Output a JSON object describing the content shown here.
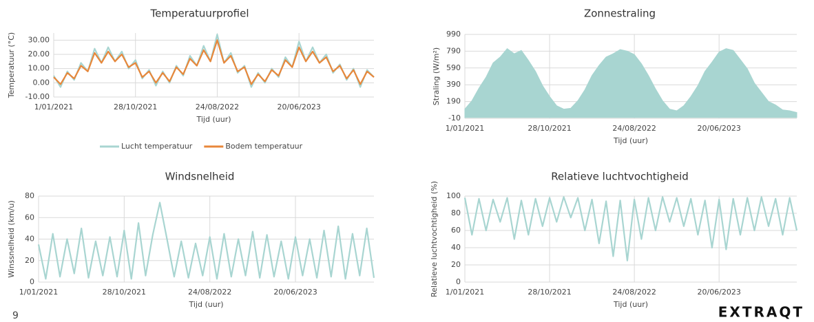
{
  "chart_data": [
    {
      "type": "line",
      "title": "Temperatuurprofiel",
      "xlabel": "Tijd (uur)",
      "ylabel": "Temperatuur (°C)",
      "x": [
        0,
        25,
        50,
        75,
        100,
        125,
        150,
        175,
        200,
        225,
        250,
        275,
        300,
        325,
        350,
        375,
        400,
        425,
        450,
        475,
        500,
        525,
        550,
        575,
        600,
        625,
        650,
        675,
        700,
        725,
        750,
        775,
        800,
        825,
        850,
        875,
        900,
        925,
        950,
        975,
        1000,
        1025,
        1050,
        1075,
        1100,
        1125,
        1150,
        1175
      ],
      "series": [
        {
          "name": "Lucht temperatuur",
          "color": "#a8d5d1",
          "values": [
            5,
            -3,
            8,
            2,
            14,
            8,
            24,
            14,
            25,
            15,
            22,
            10,
            16,
            3,
            9,
            -2,
            8,
            0,
            12,
            5,
            19,
            12,
            26,
            15,
            34,
            14,
            21,
            7,
            12,
            -3,
            7,
            0,
            10,
            4,
            18,
            11,
            29,
            15,
            25,
            14,
            20,
            7,
            13,
            2,
            10,
            -3,
            9,
            4
          ]
        },
        {
          "name": "Bodem temperatuur",
          "color": "#e8873a",
          "values": [
            4,
            -1,
            7,
            3,
            12,
            8,
            21,
            14,
            22,
            15,
            20,
            11,
            14,
            4,
            8,
            0,
            7,
            1,
            11,
            6,
            17,
            12,
            23,
            15,
            30,
            14,
            19,
            8,
            11,
            -1,
            6,
            1,
            9,
            5,
            16,
            11,
            25,
            15,
            22,
            14,
            18,
            8,
            12,
            3,
            9,
            -1,
            8,
            4
          ]
        }
      ],
      "xlim": [
        0,
        1175
      ],
      "xticks": [
        {
          "value": 0,
          "label": "1/01/2021"
        },
        {
          "value": 300,
          "label": "28/10/2021"
        },
        {
          "value": 600,
          "label": "24/08/2022"
        },
        {
          "value": 900,
          "label": "20/06/2023"
        }
      ],
      "ylim": [
        -10,
        35
      ],
      "yticks": [
        {
          "value": -10,
          "label": "-10.00"
        },
        {
          "value": 0,
          "label": "0.00"
        },
        {
          "value": 10,
          "label": "10.00"
        },
        {
          "value": 20,
          "label": "20.00"
        },
        {
          "value": 30,
          "label": "30.00"
        }
      ],
      "grid": true,
      "legend": "bottom"
    },
    {
      "type": "area",
      "title": "Zonnestraling",
      "xlabel": "Tijd (uur)",
      "ylabel": "Straling (W/m²)",
      "x": [
        0,
        25,
        50,
        75,
        100,
        125,
        150,
        175,
        200,
        225,
        250,
        275,
        300,
        325,
        350,
        375,
        400,
        425,
        450,
        475,
        500,
        525,
        550,
        575,
        600,
        625,
        650,
        675,
        700,
        725,
        750,
        775,
        800,
        825,
        850,
        875,
        900,
        925,
        950,
        975,
        1000,
        1025,
        1050,
        1075,
        1100,
        1125,
        1150,
        1175
      ],
      "series": [
        {
          "name": "Straling",
          "color": "#a8d5d1",
          "values": [
            100,
            200,
            350,
            480,
            650,
            720,
            820,
            760,
            800,
            680,
            550,
            380,
            250,
            140,
            100,
            110,
            200,
            330,
            500,
            620,
            720,
            760,
            810,
            790,
            750,
            640,
            500,
            340,
            200,
            100,
            80,
            140,
            250,
            380,
            550,
            660,
            780,
            820,
            800,
            690,
            580,
            410,
            300,
            190,
            150,
            90,
            80,
            60
          ]
        }
      ],
      "xlim": [
        0,
        1175
      ],
      "xticks": [
        {
          "value": 0,
          "label": "1/01/2021"
        },
        {
          "value": 300,
          "label": "28/10/2021"
        },
        {
          "value": 600,
          "label": "24/08/2022"
        },
        {
          "value": 900,
          "label": "20/06/2023"
        }
      ],
      "ylim": [
        -10,
        990
      ],
      "yticks": [
        -10,
        190,
        390,
        590,
        790,
        990
      ],
      "grid": true
    },
    {
      "type": "line",
      "title": "Windsnelheid",
      "xlabel": "Tijd (uur)",
      "ylabel": "Winssnelheid (km/u)",
      "x": [
        0,
        25,
        50,
        75,
        100,
        125,
        150,
        175,
        200,
        225,
        250,
        275,
        300,
        325,
        350,
        375,
        400,
        425,
        450,
        475,
        500,
        525,
        550,
        575,
        600,
        625,
        650,
        675,
        700,
        725,
        750,
        775,
        800,
        825,
        850,
        875,
        900,
        925,
        950,
        975,
        1000,
        1025,
        1050,
        1075,
        1100,
        1125,
        1150,
        1175
      ],
      "series": [
        {
          "name": "Windsnelheid",
          "color": "#a8d5d1",
          "values": [
            35,
            3,
            45,
            5,
            40,
            8,
            50,
            4,
            38,
            6,
            42,
            5,
            48,
            3,
            55,
            6,
            44,
            74,
            40,
            5,
            38,
            4,
            36,
            6,
            42,
            3,
            45,
            5,
            40,
            6,
            47,
            4,
            44,
            5,
            38,
            3,
            42,
            6,
            40,
            4,
            48,
            5,
            52,
            3,
            45,
            6,
            50,
            4
          ]
        }
      ],
      "xlim": [
        0,
        1175
      ],
      "xticks": [
        {
          "value": 0,
          "label": "1/01/2021"
        },
        {
          "value": 300,
          "label": "28/10/2021"
        },
        {
          "value": 600,
          "label": "24/08/2022"
        },
        {
          "value": 900,
          "label": "20/06/2023"
        }
      ],
      "ylim": [
        0,
        80
      ],
      "yticks": [
        0,
        20,
        40,
        60,
        80
      ],
      "grid": true
    },
    {
      "type": "line",
      "title": "Relatieve luchtvochtigheid",
      "xlabel": "Tijd (uur)",
      "ylabel": "Relatieve luchtvochtigheid (%)",
      "x": [
        0,
        25,
        50,
        75,
        100,
        125,
        150,
        175,
        200,
        225,
        250,
        275,
        300,
        325,
        350,
        375,
        400,
        425,
        450,
        475,
        500,
        525,
        550,
        575,
        600,
        625,
        650,
        675,
        700,
        725,
        750,
        775,
        800,
        825,
        850,
        875,
        900,
        925,
        950,
        975,
        1000,
        1025,
        1050,
        1075,
        1100,
        1125,
        1150,
        1175
      ],
      "series": [
        {
          "name": "Relatieve luchtvochtigheid",
          "color": "#a8d5d1",
          "values": [
            98,
            55,
            97,
            60,
            96,
            70,
            98,
            50,
            95,
            55,
            97,
            65,
            98,
            70,
            99,
            75,
            98,
            60,
            96,
            45,
            94,
            30,
            95,
            25,
            96,
            50,
            98,
            60,
            99,
            70,
            98,
            65,
            97,
            55,
            95,
            40,
            96,
            38,
            97,
            55,
            98,
            60,
            99,
            65,
            97,
            55,
            98,
            60
          ]
        }
      ],
      "xlim": [
        0,
        1175
      ],
      "xticks": [
        {
          "value": 0,
          "label": "1/01/2021"
        },
        {
          "value": 300,
          "label": "28/10/2021"
        },
        {
          "value": 600,
          "label": "24/08/2022"
        },
        {
          "value": 900,
          "label": "20/06/2023"
        }
      ],
      "ylim": [
        0,
        100
      ],
      "yticks": [
        0,
        20,
        40,
        60,
        80,
        100
      ],
      "grid": true
    }
  ],
  "footer": {
    "page": "9",
    "logo": "EXTRAQT"
  }
}
